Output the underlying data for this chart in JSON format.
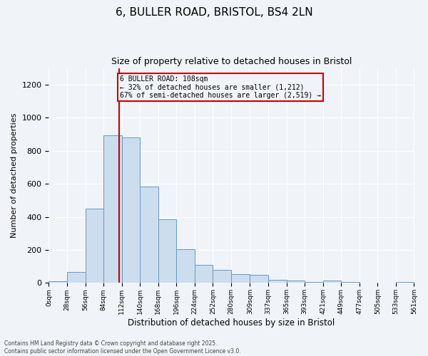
{
  "title_line1": "6, BULLER ROAD, BRISTOL, BS4 2LN",
  "title_line2": "Size of property relative to detached houses in Bristol",
  "xlabel": "Distribution of detached houses by size in Bristol",
  "ylabel": "Number of detached properties",
  "bar_color": "#ccdded",
  "bar_edge_color": "#6699cc",
  "background_color": "#f0f4f8",
  "grid_color": "white",
  "annotation_box_color": "#cc0000",
  "vline_color": "#cc0000",
  "vline_x": 108,
  "bin_edges": [
    0,
    28,
    56,
    84,
    112,
    140,
    168,
    196,
    224,
    252,
    280,
    309,
    337,
    365,
    393,
    421,
    449,
    477,
    505,
    533,
    561
  ],
  "bin_labels": [
    "0sqm",
    "28sqm",
    "56sqm",
    "84sqm",
    "112sqm",
    "140sqm",
    "168sqm",
    "196sqm",
    "224sqm",
    "252sqm",
    "280sqm",
    "309sqm",
    "337sqm",
    "365sqm",
    "393sqm",
    "421sqm",
    "449sqm",
    "477sqm",
    "505sqm",
    "533sqm",
    "561sqm"
  ],
  "bar_heights": [
    10,
    65,
    450,
    895,
    880,
    585,
    385,
    205,
    110,
    80,
    55,
    50,
    20,
    15,
    5,
    15,
    5,
    0,
    0,
    5
  ],
  "ylim": [
    0,
    1300
  ],
  "yticks": [
    0,
    200,
    400,
    600,
    800,
    1000,
    1200
  ],
  "annotation_text": "6 BULLER ROAD: 108sqm\n← 32% of detached houses are smaller (1,212)\n67% of semi-detached houses are larger (2,519) →",
  "footnote": "Contains HM Land Registry data © Crown copyright and database right 2025.\nContains public sector information licensed under the Open Government Licence v3.0."
}
